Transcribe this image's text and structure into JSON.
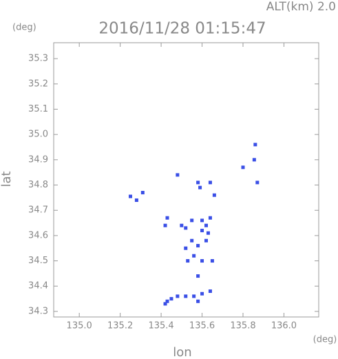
{
  "chart_data": {
    "type": "scatter",
    "title": "2016/11/28 01:15:47",
    "subtitle": "ALT(km) 2.0",
    "y_unit": "(deg)",
    "x_unit": "(deg)",
    "x_label": "lon",
    "y_label": "lat",
    "color": "#3a4fe6",
    "x": [
      135.86,
      135.855,
      135.8,
      135.87,
      135.58,
      135.59,
      135.64,
      135.66,
      135.25,
      135.31,
      135.28,
      135.48,
      135.43,
      135.42,
      135.55,
      135.5,
      135.52,
      135.6,
      135.62,
      135.64,
      135.6,
      135.63,
      135.55,
      135.58,
      135.62,
      135.52,
      135.56,
      135.6,
      135.53,
      135.65,
      135.58,
      135.43,
      135.42,
      135.45,
      135.48,
      135.52,
      135.56,
      135.6,
      135.64,
      135.58
    ],
    "values": [
      34.96,
      34.9,
      34.87,
      34.81,
      34.81,
      34.79,
      34.81,
      34.76,
      34.755,
      34.77,
      34.74,
      34.84,
      34.67,
      34.64,
      34.66,
      34.64,
      34.63,
      34.66,
      34.64,
      34.67,
      34.62,
      34.61,
      34.58,
      34.56,
      34.58,
      34.55,
      34.52,
      34.5,
      34.5,
      34.5,
      34.44,
      34.34,
      34.33,
      34.35,
      34.36,
      34.36,
      34.36,
      34.37,
      34.38,
      34.34
    ],
    "xlim": [
      134.875,
      136.17
    ],
    "ylim": [
      34.278,
      35.363
    ],
    "xticks": [
      {
        "value": 135,
        "label": "135.0"
      },
      {
        "value": 135.2,
        "label": "135.2"
      },
      {
        "value": 135.4,
        "label": "135.4"
      },
      {
        "value": 135.6,
        "label": "135.6"
      },
      {
        "value": 135.8,
        "label": "135.8"
      },
      {
        "value": 136,
        "label": "136.0"
      }
    ],
    "yticks": [
      34.3,
      34.4,
      34.5,
      34.6,
      34.7,
      34.8,
      34.9,
      {
        "value": 35,
        "label": "35.0"
      },
      35.1,
      35.2,
      35.3
    ]
  }
}
